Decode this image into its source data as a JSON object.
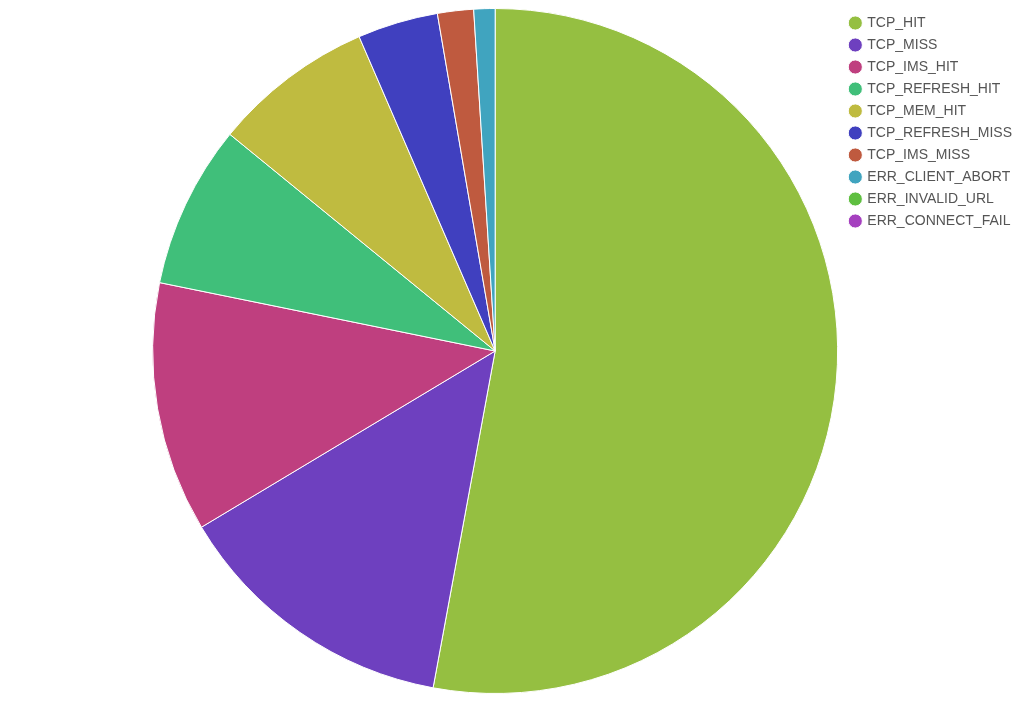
{
  "chart_data": {
    "type": "pie",
    "categories": [
      "TCP_HIT",
      "TCP_MISS",
      "TCP_IMS_HIT",
      "TCP_REFRESH_HIT",
      "TCP_MEM_HIT",
      "TCP_REFRESH_MISS",
      "TCP_IMS_MISS",
      "ERR_CLIENT_ABORT",
      "ERR_INVALID_URL",
      "ERR_CONNECT_FAIL"
    ],
    "values": [
      52.9,
      13.5,
      11.8,
      7.7,
      7.6,
      3.8,
      1.7,
      1.0,
      0,
      0
    ],
    "colors": [
      "#95bf41",
      "#6e40bf",
      "#bf3f7f",
      "#40bf7a",
      "#bfbb40",
      "#4040bf",
      "#bf5a3f",
      "#40a4bf",
      "#5fbf40",
      "#a540bf"
    ],
    "legend": "top right"
  }
}
